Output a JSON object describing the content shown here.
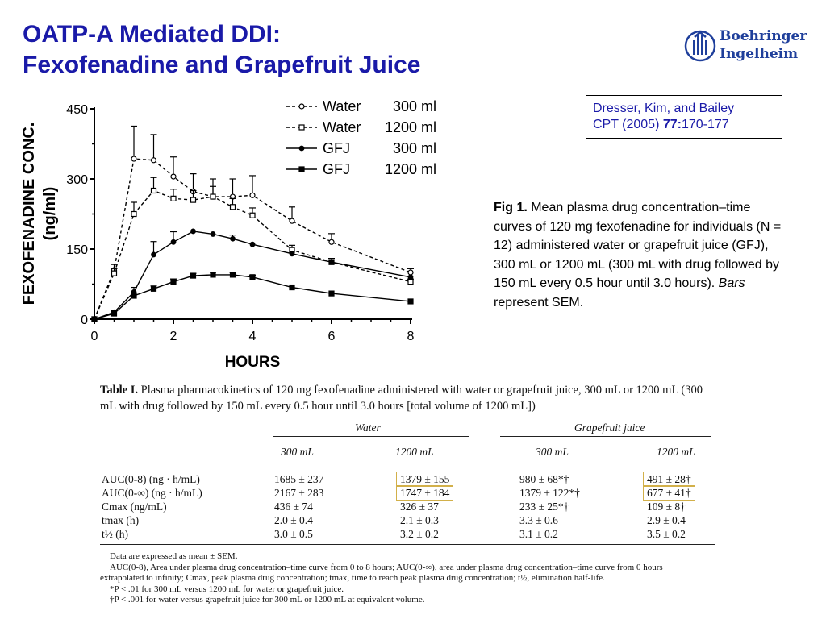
{
  "slide": {
    "title_line1": "OATP-A Mediated DDI:",
    "title_line2": "Fexofenadine and Grapefruit Juice",
    "logo": {
      "icon": "boehringer-ingelheim-logo-icon",
      "line1": "Boehringer",
      "line2": "Ingelheim",
      "color": "#1f3f9b"
    },
    "citation": {
      "line1": "Dresser, Kim, and Bailey",
      "line2_prefix": "CPT (2005) ",
      "line2_bold": "77:",
      "line2_suffix": "170-177"
    },
    "caption": {
      "label": "Fig 1.",
      "text": " Mean plasma drug concentration–time curves of 120 mg fexofenadine for individuals (N = 12) administered water or grapefruit juice (GFJ), 300 mL or 1200 mL (300 mL with drug followed by 150 mL every 0.5 hour until 3.0 hours). ",
      "italic": "Bars",
      "end": " represent SEM."
    }
  },
  "chart_data": {
    "type": "line",
    "xlabel": "HOURS",
    "ylabel_line1": "FEXOFENADINE CONC.",
    "ylabel_line2": "(ng/ml)",
    "xlim": [
      0,
      8
    ],
    "ylim": [
      0,
      450
    ],
    "xticks": [
      "0",
      "2",
      "4",
      "6",
      "8"
    ],
    "yticks": [
      "0",
      "150",
      "300",
      "450"
    ],
    "grid": false,
    "legend_position": "top-right",
    "series": [
      {
        "name": "Water",
        "volume": "300 ml",
        "marker": "open-circle",
        "dash": "dashed",
        "x": [
          0,
          0.5,
          1,
          1.5,
          2,
          2.5,
          3,
          3.5,
          4,
          5,
          6,
          8
        ],
        "y": [
          0,
          105,
          343,
          340,
          305,
          273,
          262,
          262,
          265,
          210,
          165,
          100
        ],
        "err": [
          0,
          12,
          70,
          55,
          42,
          38,
          38,
          38,
          42,
          30,
          18,
          8
        ]
      },
      {
        "name": "Water",
        "volume": "1200 ml",
        "marker": "open-square",
        "dash": "dashed",
        "x": [
          0,
          0.5,
          1,
          1.5,
          2,
          2.5,
          3,
          3.5,
          4,
          5,
          6,
          8
        ],
        "y": [
          0,
          98,
          225,
          275,
          258,
          255,
          262,
          240,
          222,
          148,
          122,
          80
        ],
        "err": [
          0,
          10,
          25,
          28,
          20,
          20,
          22,
          18,
          16,
          10,
          8,
          6
        ]
      },
      {
        "name": "GFJ",
        "volume": "300 ml",
        "marker": "filled-circle",
        "dash": "solid",
        "x": [
          0,
          0.5,
          1,
          1.5,
          2,
          2.5,
          3,
          3.5,
          4,
          5,
          6,
          8
        ],
        "y": [
          0,
          15,
          58,
          138,
          165,
          188,
          182,
          172,
          160,
          140,
          122,
          90
        ],
        "err": [
          0,
          4,
          10,
          28,
          22,
          0,
          0,
          8,
          0,
          0,
          0,
          0
        ]
      },
      {
        "name": "GFJ",
        "volume": "1200 ml",
        "marker": "filled-square",
        "dash": "solid",
        "x": [
          0,
          0.5,
          1,
          1.5,
          2,
          2.5,
          3,
          3.5,
          4,
          5,
          6,
          8
        ],
        "y": [
          0,
          12,
          50,
          65,
          80,
          93,
          95,
          95,
          90,
          68,
          55,
          38
        ],
        "err": [
          0,
          0,
          6,
          6,
          6,
          5,
          5,
          5,
          4,
          0,
          0,
          0
        ]
      }
    ]
  },
  "table": {
    "title_label": "Table I.",
    "title_text": " Plasma pharmacokinetics of 120 mg fexofenadine administered with water or grapefruit juice, 300 mL or 1200 mL (300 mL with drug followed by 150 mL every 0.5 hour until 3.0 hours [total volume of 1200 mL])",
    "group_water": "Water",
    "group_gfj": "Grapefruit juice",
    "sub": [
      "300 mL",
      "1200 mL",
      "300 mL",
      "1200 mL"
    ],
    "highlight_color": "#d2b04a",
    "rows": [
      {
        "label": "AUC(0-8) (ng · h/mL)",
        "cells": [
          "1685 ± 237",
          "1379 ± 155",
          "980 ± 68*†",
          "491 ± 28†"
        ]
      },
      {
        "label": "AUC(0-∞) (ng · h/mL)",
        "cells": [
          "2167 ± 283",
          "1747 ± 184",
          "1379 ± 122*†",
          "677 ± 41†"
        ]
      },
      {
        "label": "Cmax (ng/mL)",
        "cells": [
          "436 ± 74",
          "326 ± 37",
          "233 ± 25*†",
          "109 ± 8†"
        ]
      },
      {
        "label": "tmax (h)",
        "cells": [
          "2.0 ± 0.4",
          "2.1 ± 0.3",
          "3.3 ± 0.6",
          "2.9 ± 0.4"
        ]
      },
      {
        "label": "t½ (h)",
        "cells": [
          "3.0 ± 0.5",
          "3.2 ± 0.2",
          "3.1 ± 0.2",
          "3.5 ± 0.2"
        ]
      }
    ],
    "footnotes": [
      "Data are expressed as mean ± SEM.",
      "AUC(0-8), Area under plasma drug concentration–time curve from 0 to 8 hours; AUC(0-∞), area under plasma drug concentration–time curve from 0 hours",
      "extrapolated to infinity; Cmax, peak plasma drug concentration; tmax, time to reach peak plasma drug concentration; t½, elimination half-life.",
      "*P < .01 for 300 mL versus 1200 mL for water or grapefruit juice.",
      "†P < .001 for water versus grapefruit juice for 300 mL or 1200 mL at equivalent volume."
    ]
  }
}
